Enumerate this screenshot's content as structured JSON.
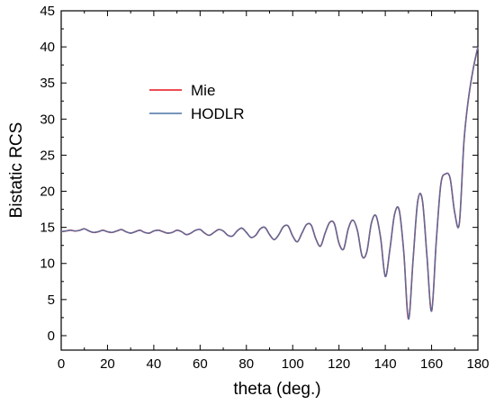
{
  "chart_data": {
    "type": "line",
    "title": "",
    "xlabel": "theta (deg.)",
    "ylabel": "Bistatic RCS",
    "xlim": [
      0,
      180
    ],
    "ylim": [
      -2,
      45
    ],
    "xticks": [
      0,
      20,
      40,
      60,
      80,
      100,
      120,
      140,
      160,
      180
    ],
    "yticks": [
      0,
      5,
      10,
      15,
      20,
      25,
      30,
      35,
      40,
      45
    ],
    "grid": false,
    "legend_position": "upper-left",
    "x": [
      0,
      2,
      4,
      6,
      8,
      10,
      12,
      14,
      16,
      18,
      20,
      22,
      24,
      26,
      28,
      30,
      32,
      34,
      36,
      38,
      40,
      42,
      44,
      46,
      48,
      50,
      52,
      54,
      56,
      58,
      60,
      62,
      64,
      66,
      68,
      70,
      72,
      74,
      76,
      78,
      80,
      82,
      84,
      86,
      88,
      90,
      92,
      94,
      96,
      98,
      100,
      102,
      104,
      106,
      108,
      110,
      112,
      114,
      116,
      118,
      120,
      122,
      124,
      126,
      128,
      130,
      132,
      134,
      136,
      138,
      140,
      142,
      144,
      146,
      148,
      150,
      152,
      154,
      156,
      158,
      160,
      162,
      164,
      166,
      168,
      170,
      172,
      174,
      176,
      178,
      180
    ],
    "series": [
      {
        "name": "Mie",
        "color": "#e8101a",
        "values": [
          14.4,
          14.5,
          14.6,
          14.5,
          14.6,
          14.8,
          14.5,
          14.3,
          14.4,
          14.6,
          14.4,
          14.3,
          14.5,
          14.7,
          14.4,
          14.2,
          14.4,
          14.6,
          14.3,
          14.2,
          14.5,
          14.6,
          14.4,
          14.2,
          14.3,
          14.6,
          14.4,
          14.0,
          14.2,
          14.6,
          14.7,
          14.2,
          13.9,
          14.3,
          14.7,
          14.5,
          13.9,
          13.8,
          14.5,
          14.9,
          14.3,
          13.6,
          13.9,
          14.8,
          15.0,
          14.0,
          13.3,
          14.0,
          15.1,
          15.2,
          13.8,
          13.0,
          14.2,
          15.4,
          15.3,
          13.4,
          12.4,
          14.2,
          15.7,
          15.5,
          12.8,
          12.0,
          14.8,
          16.0,
          14.5,
          11.0,
          11.6,
          15.6,
          16.6,
          13.5,
          8.2,
          12.0,
          16.8,
          17.4,
          11.5,
          2.3,
          10.5,
          18.6,
          18.8,
          11.0,
          3.4,
          13.0,
          21.0,
          22.4,
          21.8,
          17.0,
          15.6,
          27.0,
          33.0,
          37.0,
          40.0
        ]
      },
      {
        "name": "HODLR",
        "color": "#4a73a5",
        "values": [
          14.4,
          14.5,
          14.6,
          14.5,
          14.6,
          14.8,
          14.5,
          14.3,
          14.4,
          14.6,
          14.4,
          14.3,
          14.5,
          14.7,
          14.4,
          14.2,
          14.4,
          14.6,
          14.3,
          14.2,
          14.5,
          14.6,
          14.4,
          14.2,
          14.3,
          14.6,
          14.4,
          14.0,
          14.2,
          14.6,
          14.7,
          14.2,
          13.9,
          14.3,
          14.7,
          14.5,
          13.9,
          13.8,
          14.5,
          14.9,
          14.3,
          13.6,
          13.9,
          14.8,
          15.0,
          14.0,
          13.3,
          14.0,
          15.1,
          15.2,
          13.8,
          13.0,
          14.2,
          15.4,
          15.3,
          13.4,
          12.4,
          14.2,
          15.7,
          15.5,
          12.8,
          12.0,
          14.8,
          16.0,
          14.5,
          11.0,
          11.6,
          15.6,
          16.6,
          13.5,
          8.2,
          12.0,
          16.8,
          17.4,
          11.5,
          2.3,
          10.5,
          18.6,
          18.8,
          11.0,
          3.4,
          13.0,
          21.0,
          22.4,
          21.8,
          17.0,
          15.6,
          27.0,
          33.0,
          37.0,
          40.0
        ]
      }
    ]
  }
}
